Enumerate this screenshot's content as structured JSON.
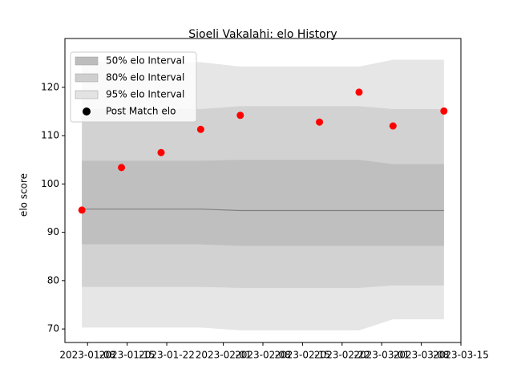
{
  "chart_data": {
    "type": "scatter",
    "title": "Sioeli Vakalahi: elo History",
    "y_label": "elo score",
    "x": [
      "2023-01-07",
      "2023-01-14",
      "2023-01-21",
      "2023-01-28",
      "2023-02-04",
      "2023-02-18",
      "2023-02-25",
      "2023-03-03",
      "2023-03-12"
    ],
    "series": [
      {
        "name": "Post Match elo",
        "color": "#ff0000",
        "values": [
          94.6,
          103.4,
          106.5,
          111.3,
          114.2,
          112.8,
          119.0,
          112.0,
          115.1
        ]
      }
    ],
    "bands": [
      {
        "name": "95% elo Interval",
        "color": "#e3e3e3",
        "lower": [
          70.3,
          70.3,
          70.3,
          70.3,
          69.7,
          69.7,
          69.7,
          72.0,
          72.0
        ],
        "upper": [
          125.3,
          125.3,
          125.3,
          125.2,
          124.3,
          124.3,
          124.3,
          125.7,
          125.7
        ]
      },
      {
        "name": "80% elo Interval",
        "color": "#cfcfcf",
        "lower": [
          78.7,
          78.7,
          78.7,
          78.7,
          78.5,
          78.5,
          78.5,
          79.0,
          79.0
        ],
        "upper": [
          115.5,
          115.5,
          115.5,
          115.5,
          116.1,
          116.1,
          116.1,
          115.5,
          115.5
        ]
      },
      {
        "name": "50% elo Interval",
        "color": "#bdbdbd",
        "lower": [
          87.5,
          87.5,
          87.5,
          87.5,
          87.2,
          87.2,
          87.2,
          87.2,
          87.2
        ],
        "upper": [
          104.8,
          104.8,
          104.8,
          104.8,
          105.0,
          105.0,
          105.0,
          104.1,
          104.1
        ]
      }
    ],
    "mean": [
      94.8,
      94.8,
      94.8,
      94.8,
      94.5,
      94.5,
      94.5,
      94.5,
      94.5
    ],
    "xlim": [
      "2023-01-04",
      "2023-03-15"
    ],
    "xticks": [
      "2023-01-08",
      "2023-01-15",
      "2023-01-22",
      "2023-02-01",
      "2023-02-08",
      "2023-02-15",
      "2023-02-22",
      "2023-03-01",
      "2023-03-08",
      "2023-03-15"
    ],
    "ylim": [
      67.2,
      130.1
    ],
    "yticks": [
      70,
      80,
      90,
      100,
      110,
      120
    ],
    "legend": "upper left",
    "grid": false
  }
}
